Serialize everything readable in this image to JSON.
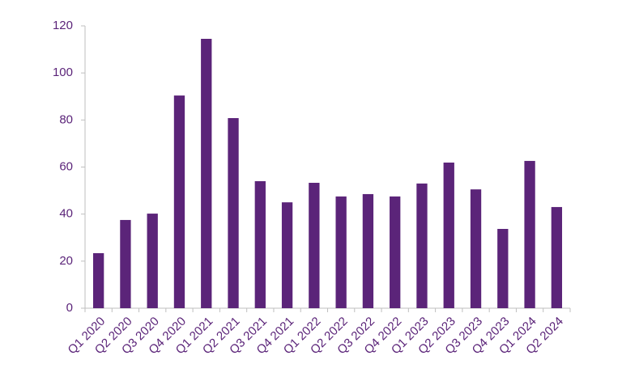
{
  "chart_data": {
    "type": "bar",
    "categories": [
      "Q1 2020",
      "Q2 2020",
      "Q3 2020",
      "Q4 2020",
      "Q1 2021",
      "Q2 2021",
      "Q3 2021",
      "Q4 2021",
      "Q1 2022",
      "Q2 2022",
      "Q3 2022",
      "Q4 2022",
      "Q1 2023",
      "Q2 2023",
      "Q3 2023",
      "Q4 2023",
      "Q1 2024",
      "Q2 2024"
    ],
    "values": [
      23.4,
      37.5,
      40.2,
      90.4,
      114.5,
      80.8,
      54,
      45,
      53.3,
      47.5,
      48.5,
      47.5,
      53,
      61.9,
      50.5,
      33.7,
      62.6,
      43
    ],
    "color": "#5b2479",
    "ylim": [
      0,
      120
    ],
    "yticks": [
      0,
      20,
      40,
      60,
      80,
      100,
      120
    ],
    "grid": false
  }
}
